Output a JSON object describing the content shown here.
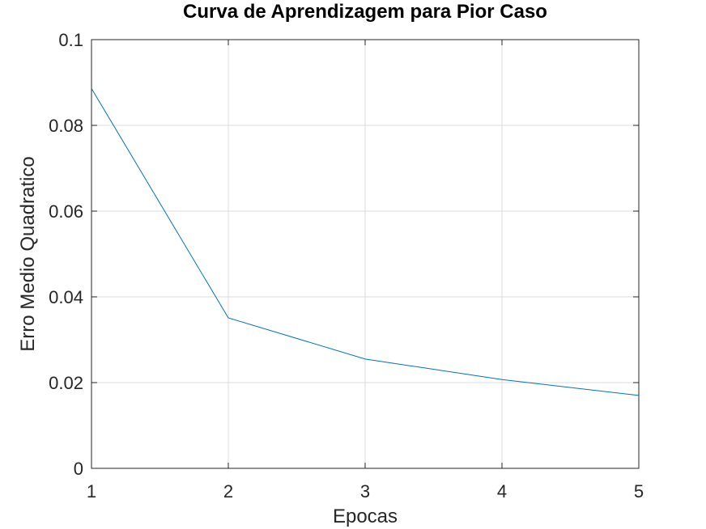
{
  "chart_data": {
    "type": "line",
    "title": "Curva de Aprendizagem para Pior Caso",
    "xlabel": "Epocas",
    "ylabel": "Erro Medio Quadratico",
    "xlim": [
      1,
      5
    ],
    "ylim": [
      0,
      0.1
    ],
    "xticks": [
      "1",
      "2",
      "3",
      "4",
      "5"
    ],
    "yticks": [
      "0",
      "0.02",
      "0.04",
      "0.06",
      "0.08",
      "0.1"
    ],
    "grid": true,
    "series": [
      {
        "color": "#0072bd",
        "x": [
          1,
          2,
          3,
          4,
          5
        ],
        "y": [
          0.0886,
          0.0351,
          0.0255,
          0.0207,
          0.017
        ]
      }
    ]
  }
}
